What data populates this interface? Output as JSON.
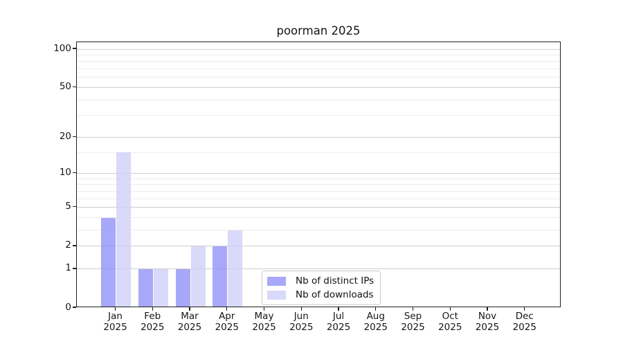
{
  "title": "poorman 2025",
  "colors": {
    "background": "#ffffff",
    "ips_bar": "#a8a8f8",
    "downloads_bar": "#d9d9fa",
    "ips_bar_rgba": "rgba(146,146,246,0.8)",
    "downloads_bar_rgba": "rgba(208,208,249,0.8)",
    "grid_major": "#cdcdcd",
    "grid_minor": "#ededed",
    "axis": "#1f1f1f",
    "legend_border": "#c9c9c9"
  },
  "chart_data": {
    "type": "bar",
    "title": "poorman 2025",
    "months": [
      "Jan",
      "Feb",
      "Mar",
      "Apr",
      "May",
      "Jun",
      "Jul",
      "Aug",
      "Sep",
      "Oct",
      "Nov",
      "Dec"
    ],
    "year_label": "2025",
    "categories": [
      "Jan 2025",
      "Feb 2025",
      "Mar 2025",
      "Apr 2025",
      "May 2025",
      "Jun 2025",
      "Jul 2025",
      "Aug 2025",
      "Sep 2025",
      "Oct 2025",
      "Nov 2025",
      "Dec 2025"
    ],
    "series": [
      {
        "name": "Nb of distinct IPs",
        "color": "#a8a8f8",
        "color_rgba": "rgba(146,146,246,0.8)",
        "values": [
          4,
          1,
          1,
          2,
          0,
          0,
          0,
          0,
          0,
          0,
          0,
          0
        ]
      },
      {
        "name": "Nb of downloads",
        "color": "#d9d9fa",
        "color_rgba": "rgba(208,208,249,0.8)",
        "values": [
          15,
          1,
          2,
          3,
          0,
          0,
          0,
          0,
          0,
          0,
          0,
          0
        ]
      }
    ],
    "y_axis": {
      "scale": "log1p",
      "tick_values": [
        100,
        50,
        20,
        10,
        5,
        2,
        1,
        0
      ],
      "tick_labels": [
        "100",
        "50",
        "20",
        "10",
        "5",
        "2",
        "1",
        "0"
      ],
      "minor_gridline_values": [
        3,
        4,
        6,
        7,
        8,
        9,
        15,
        30,
        40,
        60,
        70,
        80,
        90
      ],
      "range_max": 115
    },
    "xlabel": "",
    "ylabel": "",
    "grid": "horizontal",
    "legend": {
      "entries": [
        "Nb of distinct IPs",
        "Nb of downloads"
      ],
      "location": "lower center"
    }
  }
}
